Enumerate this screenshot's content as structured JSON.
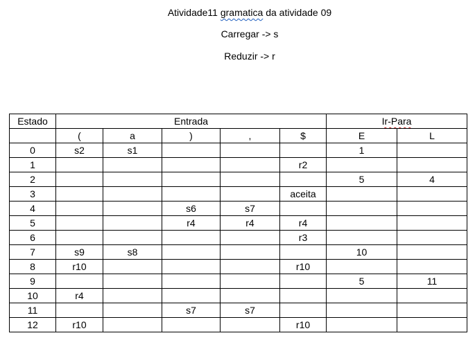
{
  "header": {
    "title_prefix": "Atividade11 ",
    "title_misspelled": "gramatica",
    "title_suffix": " da atividade 09",
    "carregar": "Carregar -> s",
    "reduzir": "Reduzir -> r"
  },
  "table": {
    "estado_header": "Estado",
    "entrada_header": "Entrada",
    "irpara_header": "Ir-Para",
    "symbols": [
      "(",
      "a",
      ")",
      ",",
      "$",
      "E",
      "L"
    ],
    "rows": [
      [
        "0",
        "s2",
        "s1",
        "",
        "",
        "",
        "1",
        ""
      ],
      [
        "1",
        "",
        "",
        "",
        "",
        "r2",
        "",
        ""
      ],
      [
        "2",
        "",
        "",
        "",
        "",
        "",
        "5",
        "4"
      ],
      [
        "3",
        "",
        "",
        "",
        "",
        "aceita",
        "",
        ""
      ],
      [
        "4",
        "",
        "",
        "s6",
        "s7",
        "",
        "",
        ""
      ],
      [
        "5",
        "",
        "",
        "r4",
        "r4",
        "r4",
        "",
        ""
      ],
      [
        "6",
        "",
        "",
        "",
        "",
        "r3",
        "",
        ""
      ],
      [
        "7",
        "s9",
        "s8",
        "",
        "",
        "",
        "10",
        ""
      ],
      [
        "8",
        "r10",
        "",
        "",
        "",
        "r10",
        "",
        ""
      ],
      [
        "9",
        "",
        "",
        "",
        "",
        "",
        "5",
        "11"
      ],
      [
        "10",
        "r4",
        "",
        "",
        "",
        "",
        "",
        ""
      ],
      [
        "11",
        "",
        "",
        "s7",
        "s7",
        "",
        "",
        ""
      ],
      [
        "12",
        "r10",
        "",
        "",
        "",
        "r10",
        "",
        ""
      ]
    ]
  }
}
